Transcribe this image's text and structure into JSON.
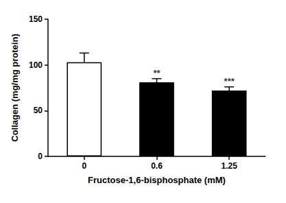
{
  "chart_data": {
    "type": "bar",
    "categories": [
      "0",
      "0.6",
      "1.25"
    ],
    "values": [
      103,
      81,
      72
    ],
    "errors": [
      10,
      4,
      4
    ],
    "colors": [
      "#ffffff",
      "#000000",
      "#000000"
    ],
    "xlabel": "Fructose-1,6-bisphosphate (mM)",
    "ylabel": "Collagen (mg/mg protein)",
    "ylim": [
      0,
      150
    ],
    "yticks": [
      0,
      50,
      100,
      150
    ],
    "annotations": [
      {
        "category": "0.6",
        "text": "**"
      },
      {
        "category": "1.25",
        "text": "***"
      }
    ],
    "grid": false
  }
}
